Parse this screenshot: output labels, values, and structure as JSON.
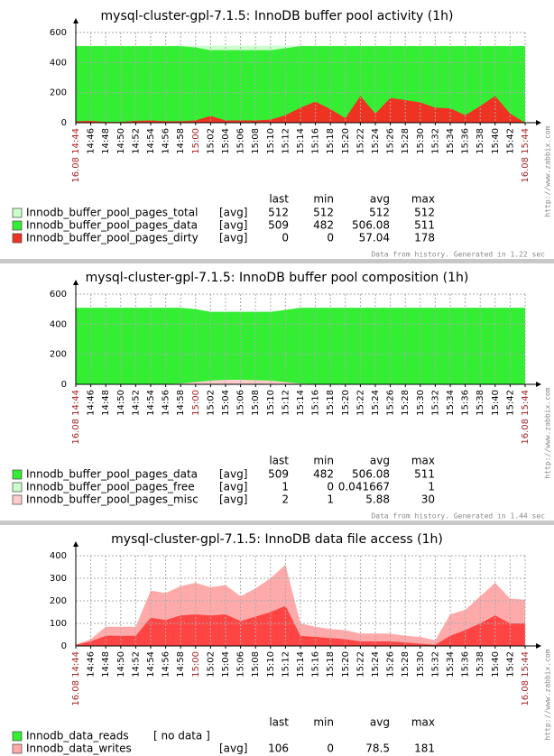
{
  "chart_data": [
    {
      "type": "area",
      "title": "mysql-cluster-gpl-7.1.5: InnoDB buffer pool activity  (1h)",
      "categories": [
        "16.08 14:44",
        "14:46",
        "14:48",
        "14:50",
        "14:52",
        "14:54",
        "14:56",
        "14:58",
        "15:00",
        "15:02",
        "15:04",
        "15:06",
        "15:08",
        "15:10",
        "15:12",
        "15:14",
        "15:16",
        "15:18",
        "15:20",
        "15:22",
        "15:24",
        "15:26",
        "15:28",
        "15:30",
        "15:32",
        "15:34",
        "15:36",
        "15:38",
        "15:40",
        "15:42",
        "16.08 15:44"
      ],
      "ylim": [
        0,
        600
      ],
      "yticks": [
        0,
        200,
        400,
        600
      ],
      "grid": true,
      "legend_columns": [
        "last",
        "min",
        "avg",
        "max"
      ],
      "series": [
        {
          "name": "Innodb_buffer_pool_pages_total",
          "color": "#ccffcc",
          "function": "[avg]",
          "last": 512,
          "min": 512,
          "avg": 512,
          "max": 512,
          "values": [
            512,
            512,
            512,
            512,
            512,
            512,
            512,
            512,
            512,
            512,
            512,
            512,
            512,
            512,
            512,
            512,
            512,
            512,
            512,
            512,
            512,
            512,
            512,
            512,
            512,
            512,
            512,
            512,
            512,
            512,
            512
          ]
        },
        {
          "name": "Innodb_buffer_pool_pages_data",
          "color": "#33ee33",
          "function": "[avg]",
          "last": 509,
          "min": 482,
          "avg": 506.08,
          "max": 511,
          "values": [
            509,
            509,
            509,
            509,
            509,
            509,
            509,
            509,
            500,
            482,
            482,
            482,
            482,
            482,
            495,
            509,
            509,
            509,
            509,
            509,
            509,
            509,
            509,
            509,
            509,
            509,
            509,
            509,
            509,
            509,
            509
          ]
        },
        {
          "name": "Innodb_buffer_pool_pages_dirty",
          "color": "#ee3322",
          "function": "[avg]",
          "last": 0,
          "min": 0,
          "avg": 57.04,
          "max": 178,
          "values": [
            10,
            12,
            5,
            5,
            12,
            15,
            10,
            10,
            15,
            45,
            15,
            15,
            15,
            20,
            50,
            100,
            140,
            90,
            30,
            178,
            60,
            165,
            150,
            135,
            100,
            95,
            50,
            110,
            178,
            60,
            0
          ]
        }
      ],
      "footer": "Data from history. Generated in 1.22 sec",
      "watermark": "http://www.zabbix.com"
    },
    {
      "type": "area",
      "title": "mysql-cluster-gpl-7.1.5: InnoDB buffer pool composition  (1h)",
      "categories": [
        "16.08 14:44",
        "14:46",
        "14:48",
        "14:50",
        "14:52",
        "14:54",
        "14:56",
        "14:58",
        "15:00",
        "15:02",
        "15:04",
        "15:06",
        "15:08",
        "15:10",
        "15:12",
        "15:14",
        "15:16",
        "15:18",
        "15:20",
        "15:22",
        "15:24",
        "15:26",
        "15:28",
        "15:30",
        "15:32",
        "15:34",
        "15:36",
        "15:38",
        "15:40",
        "15:42",
        "16.08 15:44"
      ],
      "ylim": [
        0,
        600
      ],
      "yticks": [
        0,
        200,
        400,
        600
      ],
      "grid": true,
      "legend_columns": [
        "last",
        "min",
        "avg",
        "max"
      ],
      "series": [
        {
          "name": "Innodb_buffer_pool_pages_data",
          "color": "#33ee33",
          "function": "[avg]",
          "last": 509,
          "min": 482,
          "avg": 506.08,
          "max": 511,
          "values": [
            509,
            509,
            509,
            509,
            509,
            509,
            509,
            509,
            500,
            482,
            482,
            482,
            482,
            482,
            495,
            509,
            509,
            509,
            509,
            509,
            509,
            509,
            509,
            509,
            509,
            509,
            509,
            509,
            509,
            509,
            509
          ]
        },
        {
          "name": "Innodb_buffer_pool_pages_free",
          "color": "#ccffcc",
          "function": "[avg]",
          "last": 1,
          "min": 0,
          "avg": 0.041667,
          "max": 1,
          "values": [
            0,
            0,
            0,
            0,
            0,
            0,
            0,
            0,
            0,
            0,
            0,
            0,
            0,
            0,
            0,
            0,
            0,
            0,
            0,
            0,
            0,
            0,
            0,
            0,
            0,
            0,
            0,
            0,
            0,
            0,
            1
          ]
        },
        {
          "name": "Innodb_buffer_pool_pages_misc",
          "color": "#ffcccc",
          "function": "[avg]",
          "last": 2,
          "min": 1,
          "avg": 5.88,
          "max": 30,
          "values": [
            2,
            2,
            2,
            2,
            2,
            2,
            2,
            5,
            15,
            25,
            30,
            30,
            28,
            25,
            15,
            5,
            2,
            2,
            2,
            2,
            2,
            2,
            2,
            2,
            2,
            2,
            2,
            2,
            2,
            2,
            2
          ]
        }
      ],
      "footer": "Data from history. Generated in 1.44 sec",
      "watermark": "http://www.zabbix.com"
    },
    {
      "type": "area",
      "title": "mysql-cluster-gpl-7.1.5: InnoDB data file access  (1h)",
      "categories": [
        "16.08 14:44",
        "14:46",
        "14:48",
        "14:50",
        "14:52",
        "14:54",
        "14:56",
        "14:58",
        "15:00",
        "15:02",
        "15:04",
        "15:06",
        "15:08",
        "15:10",
        "15:12",
        "15:14",
        "15:16",
        "15:18",
        "15:20",
        "15:22",
        "15:24",
        "15:26",
        "15:28",
        "15:30",
        "15:32",
        "15:34",
        "15:36",
        "15:38",
        "15:40",
        "15:42",
        "16.08 15:44"
      ],
      "ylim": [
        0,
        400
      ],
      "yticks": [
        0,
        100,
        200,
        300,
        400
      ],
      "grid": true,
      "legend_columns": [
        "last",
        "min",
        "avg",
        "max"
      ],
      "series": [
        {
          "name": "Innodb_data_reads",
          "color": "#33ee33",
          "function": "[ no data ]",
          "values": [
            null,
            null,
            null,
            null,
            null,
            null,
            null,
            null,
            null,
            null,
            null,
            null,
            null,
            null,
            null,
            null,
            null,
            null,
            null,
            null,
            null,
            null,
            null,
            null,
            null,
            null,
            null,
            null,
            null,
            null,
            null
          ]
        },
        {
          "name": "Innodb_data_writes",
          "color": "#ffaaaa",
          "avg_color": "#ff4444",
          "function": "[avg]",
          "last": 106,
          "min": 0,
          "avg": 78.5,
          "max": 181,
          "values": [
            5,
            20,
            45,
            45,
            45,
            125,
            115,
            135,
            140,
            135,
            140,
            110,
            130,
            150,
            178,
            45,
            40,
            35,
            30,
            20,
            20,
            20,
            15,
            10,
            5,
            45,
            70,
            100,
            135,
            100,
            100
          ],
          "max_values": [
            5,
            30,
            85,
            85,
            85,
            245,
            235,
            265,
            280,
            260,
            270,
            220,
            255,
            300,
            360,
            100,
            85,
            75,
            70,
            55,
            55,
            55,
            45,
            40,
            25,
            140,
            160,
            220,
            280,
            210,
            205
          ]
        }
      ],
      "watermark": "http://www.zabbix.com"
    }
  ]
}
